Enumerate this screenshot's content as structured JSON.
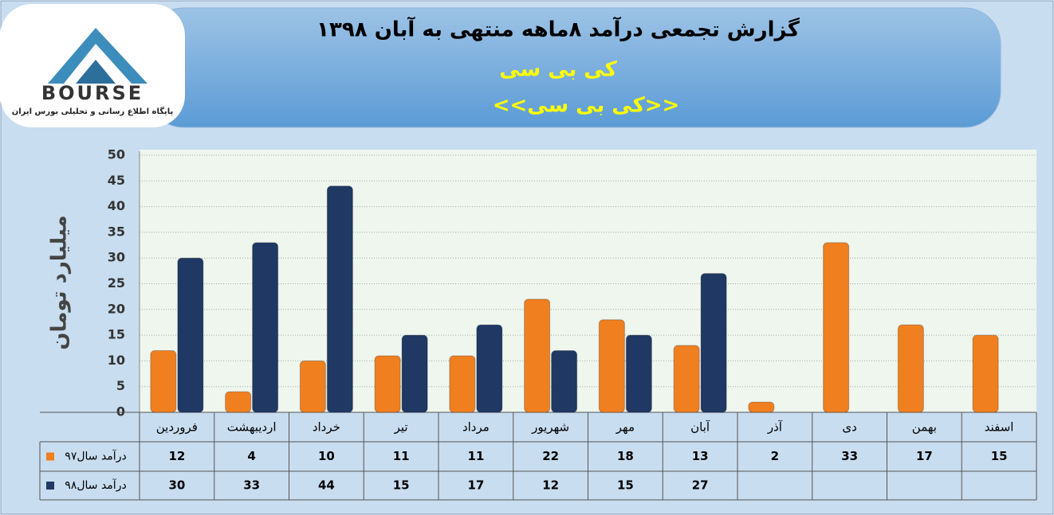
{
  "logo": {
    "name": "BOURSE",
    "tagline": "پایگاه اطلاع رسانی و تحلیلی بورس ایران"
  },
  "chart_data": {
    "type": "bar",
    "title": "گزارش تجمعی درآمد ۸ماهه منتهی به آبان ۱۳۹۸",
    "subtitle": "کی بی سی",
    "subtitle2": "<<کی بی سی>>",
    "y_label": "میلیارد تومان",
    "categories": [
      "فروردین",
      "اردیبهشت",
      "خرداد",
      "تیر",
      "مرداد",
      "شهریور",
      "مهر",
      "آبان",
      "آذر",
      "دی",
      "بهمن",
      "اسفند"
    ],
    "series": [
      {
        "name": "درآمد سال۹۷",
        "color": "#f07f20",
        "values": [
          12,
          4,
          10,
          11,
          11,
          22,
          18,
          13,
          2,
          33,
          17,
          15
        ]
      },
      {
        "name": "درآمد سال۹۸",
        "color": "#1f3864",
        "values": [
          30,
          33,
          44,
          15,
          17,
          12,
          15,
          27,
          null,
          null,
          null,
          null
        ]
      }
    ],
    "ylim": [
      0,
      50
    ],
    "yticks": [
      0,
      5,
      10,
      15,
      20,
      25,
      30,
      35,
      40,
      45,
      50
    ],
    "grid": true
  }
}
